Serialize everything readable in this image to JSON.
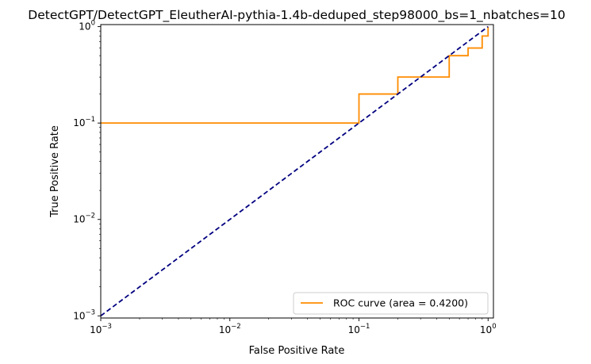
{
  "chart_data": {
    "type": "line",
    "title": "DetectGPT/DetectGPT_EleutherAI-pythia-1.4b-deduped_step98000_bs=1_nbatches=10",
    "xlabel": "False Positive Rate",
    "ylabel": "True Positive Rate",
    "xscale": "log",
    "yscale": "log",
    "xlim": [
      0.001,
      1.1
    ],
    "ylim": [
      0.00095,
      1.05
    ],
    "xticks": [
      {
        "value": 0.001,
        "base": "10",
        "exp": "−3"
      },
      {
        "value": 0.01,
        "base": "10",
        "exp": "−2"
      },
      {
        "value": 0.1,
        "base": "10",
        "exp": "−1"
      },
      {
        "value": 1,
        "base": "10",
        "exp": "0"
      }
    ],
    "yticks": [
      {
        "value": 0.001,
        "base": "10",
        "exp": "−3"
      },
      {
        "value": 0.01,
        "base": "10",
        "exp": "−2"
      },
      {
        "value": 0.1,
        "base": "10",
        "exp": "−1"
      },
      {
        "value": 1,
        "base": "10",
        "exp": "0"
      }
    ],
    "grid": false,
    "legend_position": "lower-right",
    "series": [
      {
        "name": "ROC curve (area = 0.4200)",
        "color": "#ff8c00",
        "style": "solid",
        "x": [
          0.0,
          0.1,
          0.1,
          0.2,
          0.2,
          0.3,
          0.3,
          0.5,
          0.5,
          0.7,
          0.7,
          0.9,
          0.9,
          1.0,
          1.0
        ],
        "y": [
          0.1,
          0.1,
          0.2,
          0.2,
          0.3,
          0.3,
          0.3,
          0.3,
          0.5,
          0.5,
          0.6,
          0.6,
          0.8,
          0.8,
          1.0
        ]
      },
      {
        "color": "#000080",
        "style": "dashed",
        "x": [
          0.001,
          1.0
        ],
        "y": [
          0.001,
          1.0
        ]
      }
    ]
  }
}
